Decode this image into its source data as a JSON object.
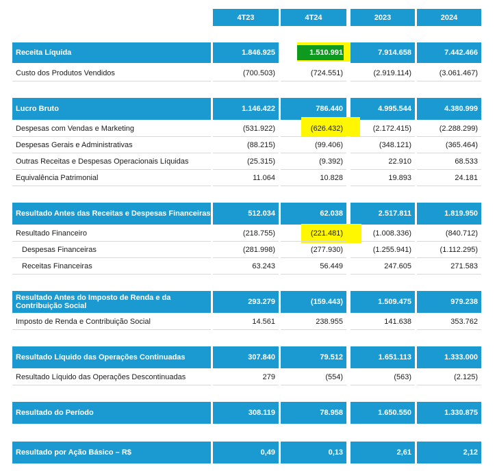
{
  "columns": [
    "4T23",
    "4T24",
    "2023",
    "2024"
  ],
  "rows": [
    {
      "type": "bar",
      "label": "Receita Líquida",
      "values": [
        "1.846.925",
        "1.510.991",
        "7.914.658",
        "7.442.466"
      ]
    },
    {
      "type": "row",
      "label": "Custo dos Produtos Vendidos",
      "values": [
        "(700.503)",
        "(724.551)",
        "(2.919.114)",
        "(3.061.467)"
      ]
    },
    {
      "type": "bar",
      "label": "Lucro Bruto",
      "values": [
        "1.146.422",
        "786.440",
        "4.995.544",
        "4.380.999"
      ]
    },
    {
      "type": "row",
      "label": "Despesas com Vendas e Marketing",
      "values": [
        "(531.922)",
        "(626.432)",
        "(2.172.415)",
        "(2.288.299)"
      ]
    },
    {
      "type": "row",
      "label": "Despesas Gerais e Administrativas",
      "values": [
        "(88.215)",
        "(99.406)",
        "(348.121)",
        "(365.464)"
      ]
    },
    {
      "type": "row",
      "label": "Outras Receitas e Despesas Operacionais Líquidas",
      "values": [
        "(25.315)",
        "(9.392)",
        "22.910",
        "68.533"
      ]
    },
    {
      "type": "row",
      "label": "Equivalência Patrimonial",
      "values": [
        "11.064",
        "10.828",
        "19.893",
        "24.181"
      ]
    },
    {
      "type": "bar",
      "label": "Resultado Antes das Receitas e Despesas Financeiras",
      "values": [
        "512.034",
        "62.038",
        "2.517.811",
        "1.819.950"
      ]
    },
    {
      "type": "row",
      "label": "Resultado Financeiro",
      "values": [
        "(218.755)",
        "(221.481)",
        "(1.008.336)",
        "(840.712)"
      ]
    },
    {
      "type": "row",
      "label": "Despesas Financeiras",
      "indent": true,
      "values": [
        "(281.998)",
        "(277.930)",
        "(1.255.941)",
        "(1.112.295)"
      ]
    },
    {
      "type": "row",
      "label": "Receitas Financeiras",
      "indent": true,
      "values": [
        "63.243",
        "56.449",
        "247.605",
        "271.583"
      ]
    },
    {
      "type": "bar",
      "label": "Resultado Antes do Imposto de Renda e da Contribuição Social",
      "values": [
        "293.279",
        "(159.443)",
        "1.509.475",
        "979.238"
      ]
    },
    {
      "type": "row",
      "label": "Imposto de Renda e Contribuição Social",
      "values": [
        "14.561",
        "238.955",
        "141.638",
        "353.762"
      ]
    },
    {
      "type": "bar",
      "label": "Resultado Líquido das Operações Continuadas",
      "values": [
        "307.840",
        "79.512",
        "1.651.113",
        "1.333.000"
      ]
    },
    {
      "type": "row",
      "label": "Resultado Líquido das Operações Descontinuadas",
      "values": [
        "279",
        "(554)",
        "(563)",
        "(2.125)"
      ]
    },
    {
      "type": "bar",
      "label": "Resultado do Período",
      "values": [
        "308.119",
        "78.958",
        "1.650.550",
        "1.330.875"
      ]
    },
    {
      "type": "bar",
      "label": "Resultado por Ação Básico – R$",
      "values": [
        "0,49",
        "0,13",
        "2,61",
        "2,12"
      ]
    }
  ],
  "colors": {
    "header": "#1a9ad0",
    "highlight_yellow": "#fff700",
    "highlight_green": "#0e9a1f"
  }
}
